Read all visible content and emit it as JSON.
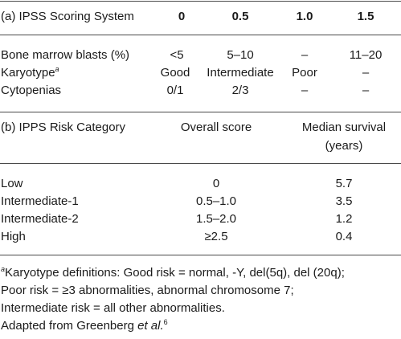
{
  "scoring": {
    "title": "(a) IPSS Scoring System",
    "columns": [
      "0",
      "0.5",
      "1.0",
      "1.5"
    ],
    "rows": [
      {
        "label": "Bone marrow blasts (%)",
        "values": [
          "<5",
          "5–10",
          "–",
          "11–20"
        ]
      },
      {
        "label": "Karyotype",
        "label_sup": "a",
        "values": [
          "Good",
          "Intermediate",
          "Poor",
          "–"
        ]
      },
      {
        "label": "Cytopenias",
        "values": [
          "0/1",
          "2/3",
          "–",
          "–"
        ]
      }
    ]
  },
  "risk": {
    "title": "(b) IPPS Risk Category",
    "col_score": "Overall score",
    "col_survival_line1": "Median survival",
    "col_survival_line2": "(years)",
    "rows": [
      {
        "label": "Low",
        "score": "0",
        "survival": "5.7"
      },
      {
        "label": "Intermediate-1",
        "score": "0.5–1.0",
        "survival": "3.5"
      },
      {
        "label": "Intermediate-2",
        "score": "1.5–2.0",
        "survival": "1.2"
      },
      {
        "label": "High",
        "score": "≥2.5",
        "survival": "0.4"
      }
    ]
  },
  "footnote": {
    "marker": "a",
    "line1": "Karyotype definitions: Good risk = normal, -Y, del(5q), del (20q);",
    "line2": "Poor risk = ≥3 abnormalities, abnormal chromosome 7;",
    "line3": "Intermediate risk = all other abnormalities.",
    "source_prefix": "Adapted from Greenberg ",
    "source_etal": "et al.",
    "source_ref": "6"
  }
}
